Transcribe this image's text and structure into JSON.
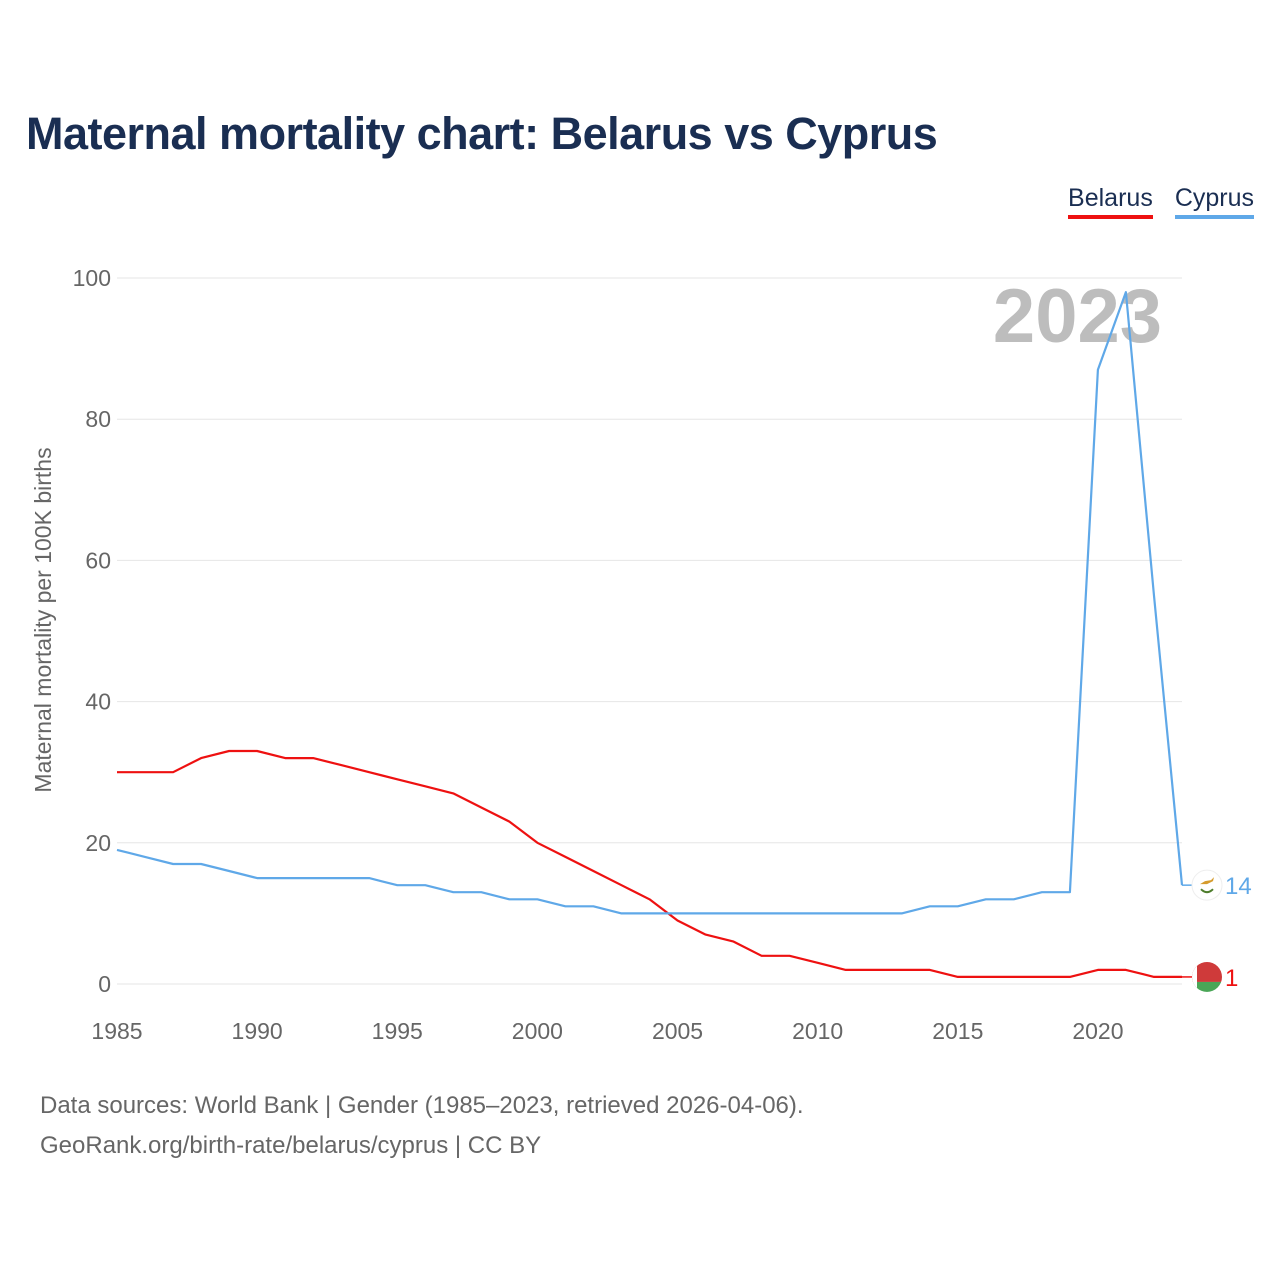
{
  "header": {
    "title": "Maternal mortality chart: Belarus vs Cyprus"
  },
  "legend": {
    "items": [
      "Belarus",
      "Cyprus"
    ]
  },
  "colors": {
    "belarus": "#ee1111",
    "cyprus": "#5fa8e8",
    "grid": "#e6e6e6",
    "title": "#1a2e52",
    "year": "#bdbdbd"
  },
  "chart_data": {
    "type": "line",
    "title": "Maternal mortality chart: Belarus vs Cyprus",
    "xlabel": "",
    "ylabel": "Maternal mortality per 100K births",
    "xlim": [
      1985,
      2023
    ],
    "ylim": [
      0,
      100
    ],
    "x_ticks": [
      1985,
      1990,
      1995,
      2000,
      2005,
      2010,
      2015,
      2020
    ],
    "y_ticks": [
      0,
      20,
      40,
      60,
      80,
      100
    ],
    "current_year_label": "2023",
    "x": [
      1985,
      1986,
      1987,
      1988,
      1989,
      1990,
      1991,
      1992,
      1993,
      1994,
      1995,
      1996,
      1997,
      1998,
      1999,
      2000,
      2001,
      2002,
      2003,
      2004,
      2005,
      2006,
      2007,
      2008,
      2009,
      2010,
      2011,
      2012,
      2013,
      2014,
      2015,
      2016,
      2017,
      2018,
      2019,
      2020,
      2021,
      2022,
      2023
    ],
    "series": [
      {
        "name": "Belarus",
        "color": "#ee1111",
        "end_value_label": "1",
        "flag_icon": "belarus-flag-icon",
        "values": [
          30,
          30,
          30,
          32,
          33,
          33,
          32,
          32,
          31,
          30,
          29,
          28,
          27,
          25,
          23,
          20,
          18,
          16,
          14,
          12,
          9,
          7,
          6,
          4,
          4,
          3,
          2,
          2,
          2,
          2,
          1,
          1,
          1,
          1,
          1,
          2,
          2,
          1,
          1
        ]
      },
      {
        "name": "Cyprus",
        "color": "#5fa8e8",
        "end_value_label": "14",
        "flag_icon": "cyprus-flag-icon",
        "values": [
          19,
          18,
          17,
          17,
          16,
          15,
          15,
          15,
          15,
          15,
          14,
          14,
          13,
          13,
          12,
          12,
          11,
          11,
          10,
          10,
          10,
          10,
          10,
          10,
          10,
          10,
          10,
          10,
          10,
          11,
          11,
          12,
          12,
          13,
          13,
          87,
          98,
          55,
          14
        ]
      }
    ]
  },
  "source": {
    "line1": "Data sources: World Bank | Gender (1985–2023, retrieved 2026-04-06).",
    "line2": "GeoRank.org/birth-rate/belarus/cyprus | CC BY"
  }
}
